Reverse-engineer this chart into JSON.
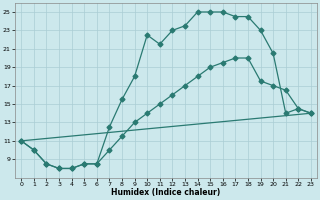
{
  "xlabel": "Humidex (Indice chaleur)",
  "bg_color": "#cce8ec",
  "grid_color": "#aacdd4",
  "line_color": "#2a7a72",
  "xlim": [
    -0.5,
    23.5
  ],
  "ylim": [
    7,
    26
  ],
  "yticks": [
    9,
    11,
    13,
    15,
    17,
    19,
    21,
    23,
    25
  ],
  "xticks": [
    0,
    1,
    2,
    3,
    4,
    5,
    6,
    7,
    8,
    9,
    10,
    11,
    12,
    13,
    14,
    15,
    16,
    17,
    18,
    19,
    20,
    21,
    22,
    23
  ],
  "line1_x": [
    0,
    1,
    2,
    3,
    4,
    5,
    6,
    7,
    8,
    9,
    10,
    11,
    12,
    13,
    14,
    15,
    16,
    17,
    18,
    19,
    20,
    21,
    22,
    23
  ],
  "line1_y": [
    11,
    10,
    8.5,
    8,
    8,
    8.5,
    8.5,
    12.5,
    15.5,
    18,
    22.5,
    21.5,
    23,
    23.5,
    25,
    25,
    25,
    24.5,
    24.5,
    23,
    20.5,
    14,
    14.5,
    14
  ],
  "line2_x": [
    0,
    1,
    2,
    3,
    4,
    5,
    6,
    7,
    8,
    9,
    10,
    11,
    12,
    13,
    14,
    15,
    16,
    17,
    18,
    19,
    20,
    21,
    22,
    23
  ],
  "line2_y": [
    11,
    10,
    8.5,
    8,
    8,
    8.5,
    8.5,
    10,
    11.5,
    13,
    14,
    15,
    16,
    17,
    18,
    19,
    19.5,
    20,
    20,
    17.5,
    17,
    16.5,
    14.5,
    14
  ],
  "line3_x": [
    0,
    23
  ],
  "line3_y": [
    11,
    14
  ]
}
